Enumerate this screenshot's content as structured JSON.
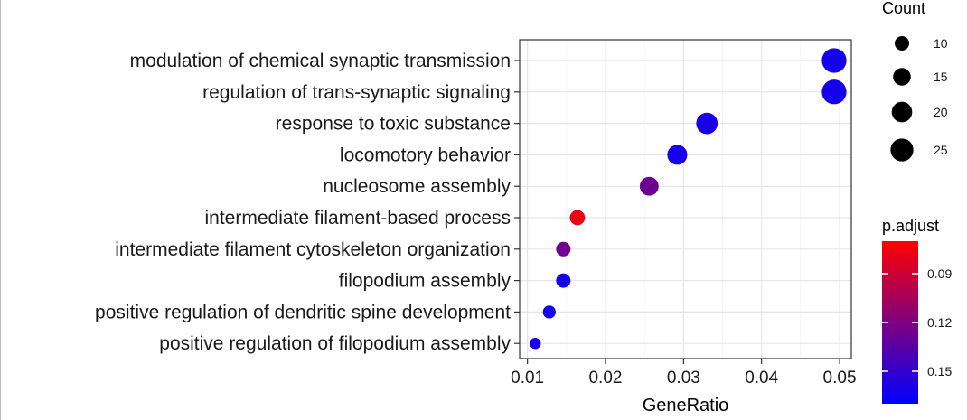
{
  "colors": {
    "high": "#FF0000",
    "low": "#0000FF",
    "grid": "#e6e6e6",
    "panel_border": "#333333"
  },
  "chart_data": {
    "type": "scatter",
    "xlabel": "GeneRatio",
    "xlim": [
      0.009,
      0.0515
    ],
    "x_ticks": [
      0.01,
      0.02,
      0.03,
      0.04,
      0.05
    ],
    "x_tick_labels": [
      "0.01",
      "0.02",
      "0.03",
      "0.04",
      "0.05"
    ],
    "grid": true,
    "points": [
      {
        "term": "modulation of chemical synaptic transmission",
        "gene_ratio": 0.0493,
        "count": 29,
        "p_adjust": 0.162
      },
      {
        "term": "regulation of trans-synaptic signaling",
        "gene_ratio": 0.0493,
        "count": 29,
        "p_adjust": 0.162
      },
      {
        "term": "response to toxic substance",
        "gene_ratio": 0.033,
        "count": 22,
        "p_adjust": 0.16
      },
      {
        "term": "locomotory behavior",
        "gene_ratio": 0.0292,
        "count": 19,
        "p_adjust": 0.161
      },
      {
        "term": "nucleosome assembly",
        "gene_ratio": 0.0256,
        "count": 17,
        "p_adjust": 0.127
      },
      {
        "term": "intermediate filament-based process",
        "gene_ratio": 0.0164,
        "count": 11,
        "p_adjust": 0.078
      },
      {
        "term": "intermediate filament cytoskeleton organization",
        "gene_ratio": 0.0146,
        "count": 10,
        "p_adjust": 0.125
      },
      {
        "term": "filopodium assembly",
        "gene_ratio": 0.0146,
        "count": 10,
        "p_adjust": 0.162
      },
      {
        "term": "positive regulation of dendritic spine development",
        "gene_ratio": 0.0128,
        "count": 8,
        "p_adjust": 0.162
      },
      {
        "term": "positive regulation of filopodium assembly",
        "gene_ratio": 0.011,
        "count": 6,
        "p_adjust": 0.162
      }
    ],
    "legend_count": {
      "title": "Count",
      "values": [
        10,
        15,
        20,
        25
      ],
      "labels": [
        "10",
        "15",
        "20",
        "25"
      ]
    },
    "legend_color": {
      "title": "p.adjust",
      "range": [
        0.07,
        0.17
      ],
      "ticks": [
        0.09,
        0.12,
        0.15
      ],
      "labels": [
        "0.09",
        "0.12",
        "0.15"
      ]
    }
  }
}
